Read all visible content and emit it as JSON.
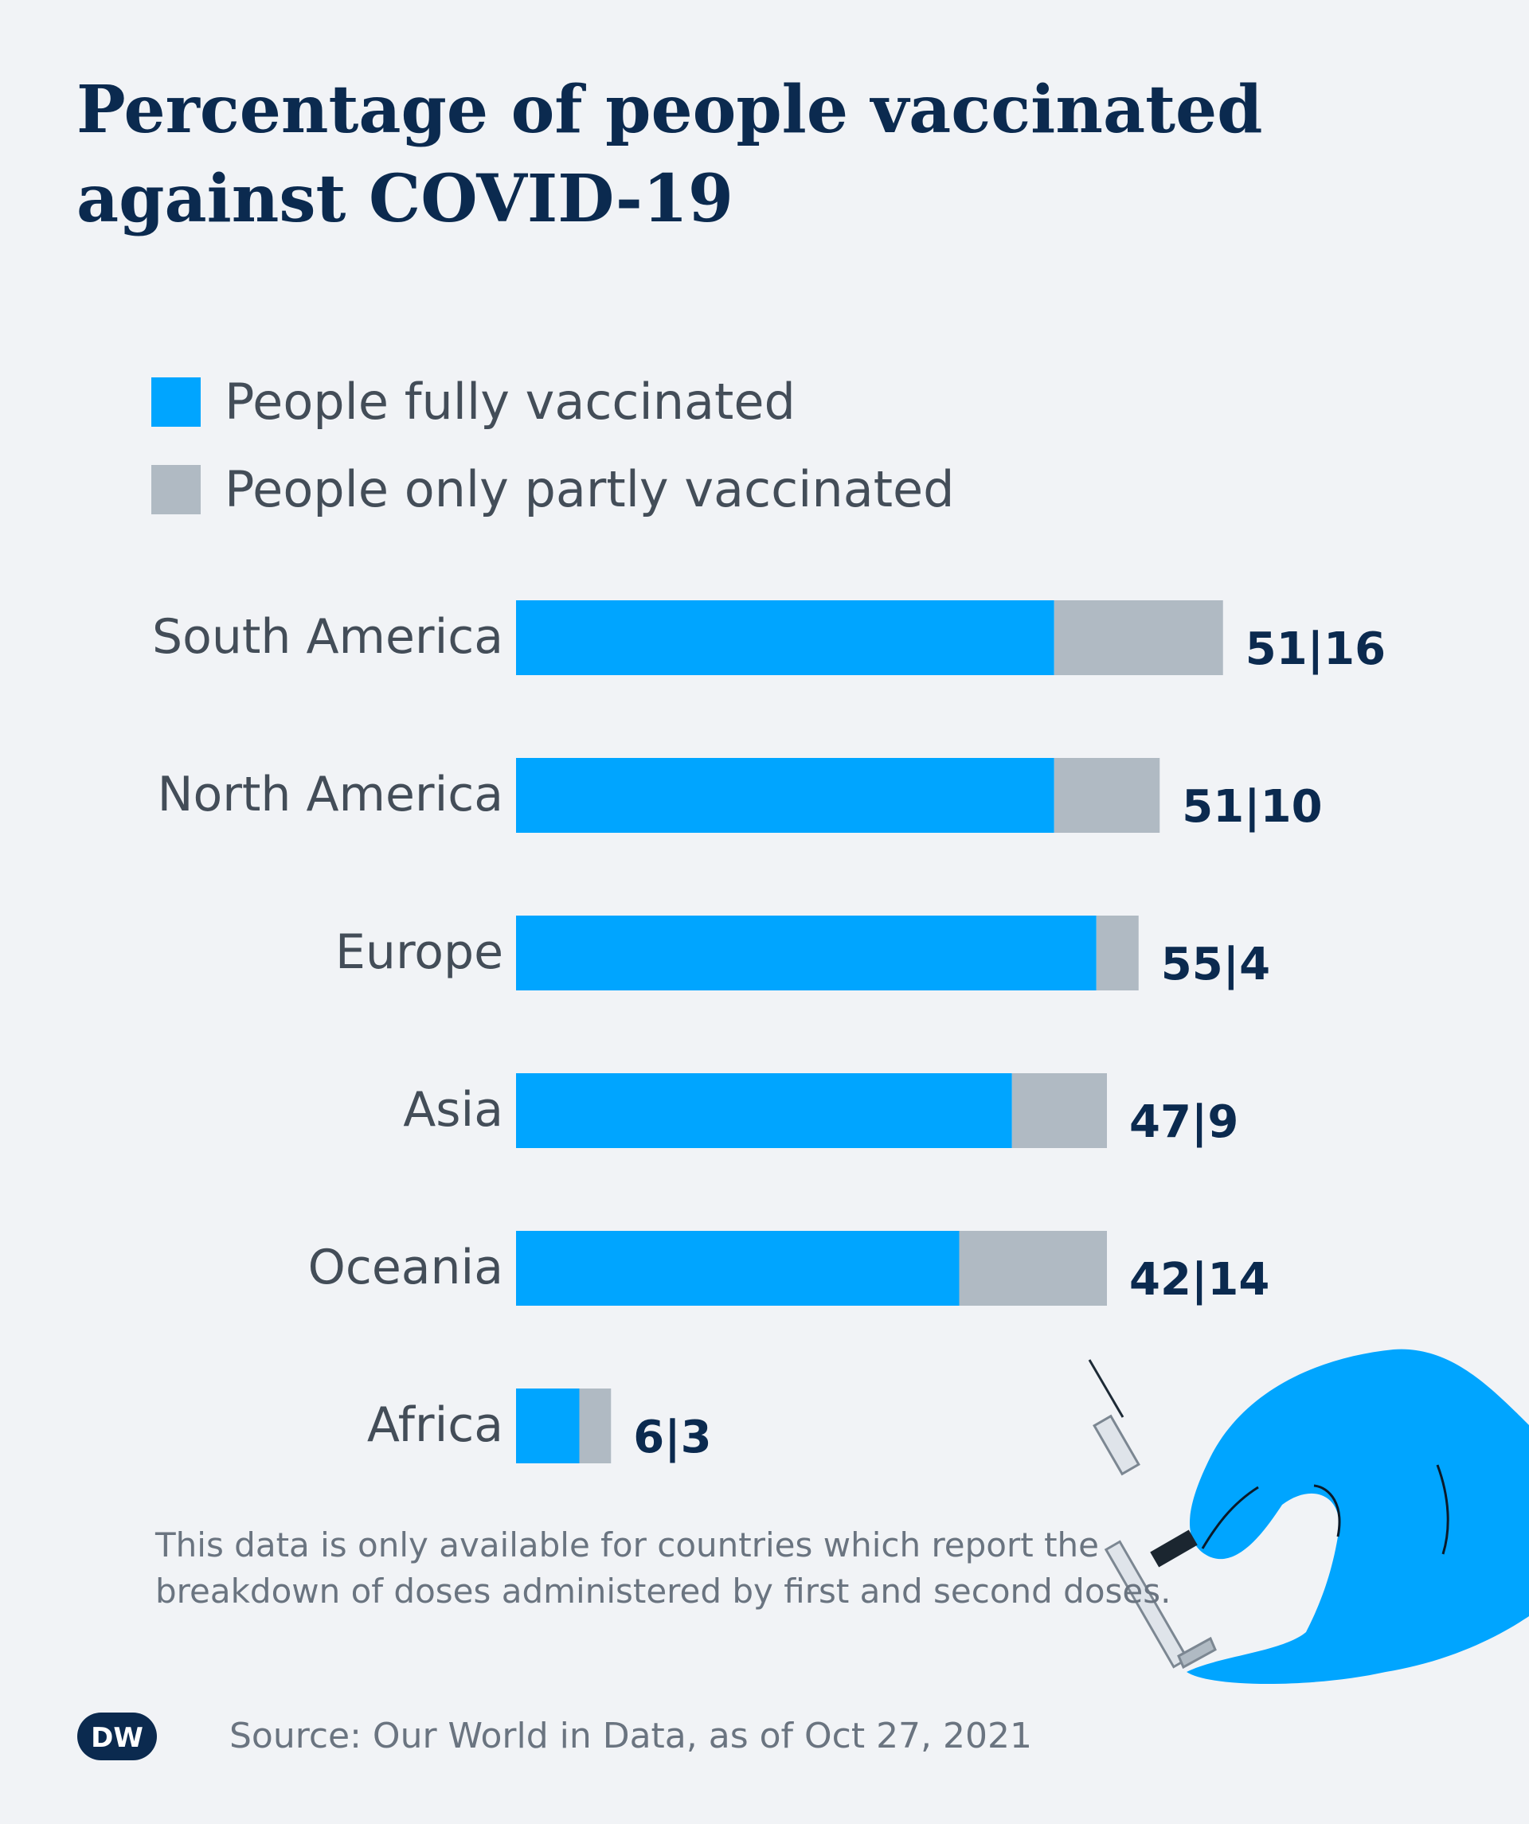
{
  "chart_data": {
    "type": "bar",
    "orientation": "horizontal",
    "stacked": true,
    "title": "Percentage of people vaccinated against COVID-19",
    "categories": [
      "South America",
      "North America",
      "Europe",
      "Asia",
      "Oceania",
      "Africa"
    ],
    "series": [
      {
        "name": "People fully vaccinated",
        "color": "#00a5ff",
        "values": [
          51,
          51,
          55,
          47,
          42,
          6
        ]
      },
      {
        "name": "People only partly vaccinated",
        "color": "#b0bac3",
        "values": [
          16,
          10,
          4,
          9,
          14,
          3
        ]
      }
    ],
    "value_labels": [
      "51|16",
      "51|10",
      "55|4",
      "47|9",
      "42|14",
      "6|3"
    ],
    "xlim": [
      0,
      100
    ],
    "grid": false,
    "legend_position": "top-left"
  },
  "legend": [
    {
      "label": "People fully vaccinated",
      "color": "#00a5ff"
    },
    {
      "label": "People only partly vaccinated",
      "color": "#b0bac3"
    }
  ],
  "footnote": "This data is only available for countries which report the breakdown of doses administered by first and second doses.",
  "source": "Source: Our World in Data, as of Oct 27, 2021",
  "logo": {
    "text": "DW"
  },
  "colors": {
    "background": "#f1f3f6",
    "title": "#0b2a4f",
    "label": "#434d58",
    "value": "#0b2a4f",
    "muted": "#6a7480",
    "glove": "#00a5ff"
  }
}
